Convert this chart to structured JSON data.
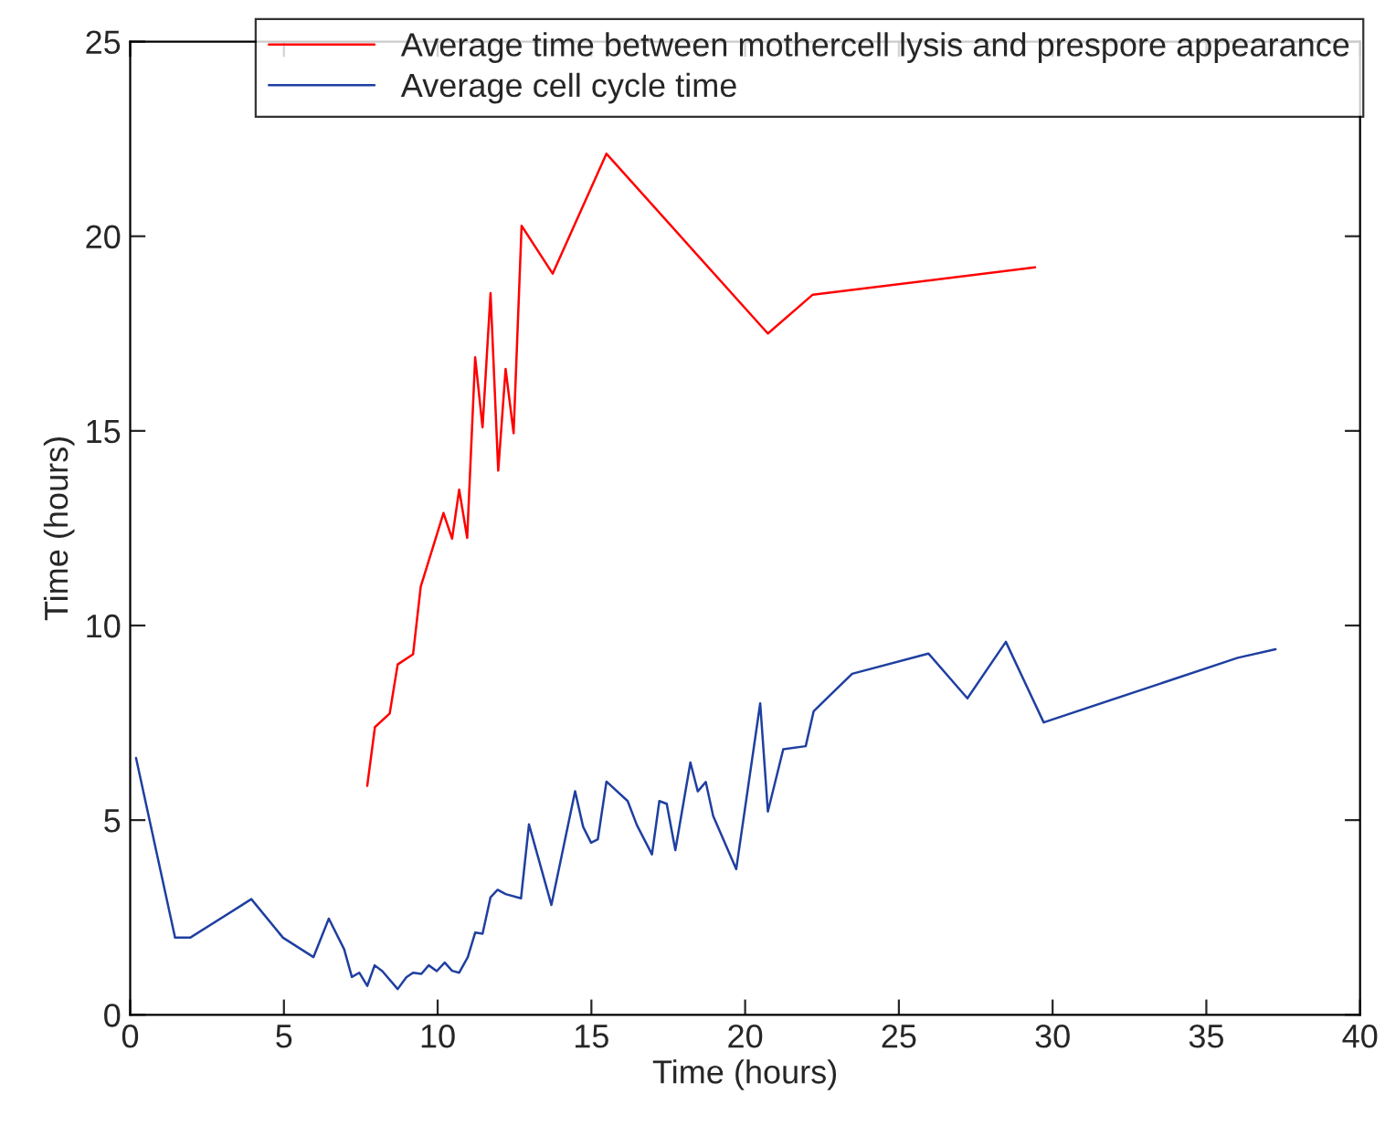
{
  "chart_data": {
    "type": "line",
    "xlabel": "Time (hours)",
    "ylabel": "Time (hours)",
    "xlim": [
      0,
      40
    ],
    "xticks": [
      0,
      5,
      10,
      15,
      20,
      25,
      30,
      35,
      40
    ],
    "ylim": [
      0,
      25
    ],
    "yticks": [
      0,
      5,
      10,
      15,
      20,
      25
    ],
    "grid": false,
    "legend": "top right",
    "marker": "none",
    "line_style": "solid",
    "series": [
      {
        "name": "Average time between mothercell lysis and prespore appearance",
        "color": "#ff0000",
        "x": [
          7.71,
          7.96,
          8.44,
          8.7,
          9.2,
          9.45,
          10.19,
          10.47,
          10.7,
          10.96,
          11.22,
          11.46,
          11.72,
          11.97,
          12.21,
          12.47,
          12.73,
          13.74,
          15.49,
          20.74,
          22.2,
          29.43
        ],
        "values": [
          5.88,
          7.39,
          7.74,
          9.0,
          9.26,
          11.0,
          12.89,
          12.23,
          13.49,
          12.25,
          16.89,
          15.09,
          18.54,
          13.98,
          16.59,
          14.94,
          20.27,
          19.04,
          22.12,
          17.5,
          18.5,
          19.2
        ]
      },
      {
        "name": "Average cell cycle time",
        "color": "#1f3fa0",
        "x": [
          0.19,
          1.46,
          1.95,
          3.94,
          4.97,
          5.96,
          6.46,
          6.96,
          7.21,
          7.45,
          7.71,
          7.95,
          8.2,
          8.7,
          8.98,
          9.2,
          9.47,
          9.71,
          9.97,
          10.23,
          10.47,
          10.7,
          10.98,
          11.22,
          11.46,
          11.72,
          11.95,
          12.21,
          12.71,
          12.97,
          13.7,
          14.47,
          14.73,
          14.99,
          15.21,
          15.49,
          16.18,
          16.48,
          16.97,
          17.21,
          17.45,
          17.73,
          18.22,
          18.46,
          18.72,
          18.96,
          19.71,
          20.49,
          20.74,
          21.24,
          21.97,
          22.23,
          23.48,
          25.96,
          27.23,
          28.48,
          29.71,
          36.02,
          37.25
        ],
        "values": [
          6.6,
          1.98,
          1.98,
          2.97,
          1.98,
          1.48,
          2.47,
          1.68,
          0.97,
          1.08,
          0.74,
          1.27,
          1.12,
          0.66,
          0.96,
          1.08,
          1.05,
          1.27,
          1.12,
          1.34,
          1.13,
          1.08,
          1.48,
          2.11,
          2.08,
          3.02,
          3.21,
          3.1,
          2.99,
          4.89,
          2.82,
          5.74,
          4.83,
          4.42,
          4.51,
          5.99,
          5.49,
          4.87,
          4.12,
          5.49,
          5.42,
          4.23,
          6.48,
          5.74,
          5.98,
          5.11,
          3.74,
          8.0,
          5.22,
          6.82,
          6.9,
          7.8,
          8.76,
          9.28,
          8.13,
          9.58,
          7.51,
          9.17,
          9.39
        ]
      }
    ]
  }
}
